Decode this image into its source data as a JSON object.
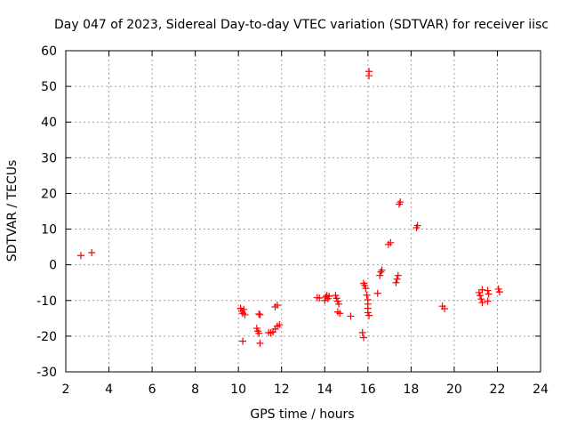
{
  "chart_data": {
    "type": "scatter",
    "title": "Day 047 of 2023, Sidereal Day-to-day VTEC variation (SDTVAR) for receiver iisc",
    "xlabel": "GPS time / hours",
    "ylabel": "SDTVAR / TECUs",
    "xlim": [
      2,
      24
    ],
    "ylim": [
      -30,
      60
    ],
    "xticks": [
      "2",
      "4",
      "6",
      "8",
      "10",
      "12",
      "14",
      "16",
      "18",
      "20",
      "22",
      "24"
    ],
    "yticks": [
      "-30",
      "-20",
      "-10",
      "0",
      "10",
      "20",
      "30",
      "40",
      "50",
      "60"
    ],
    "grid": true,
    "marker": "+",
    "color": "#ff0000",
    "series": [
      {
        "name": "iisc",
        "points": [
          [
            2.7,
            2.6
          ],
          [
            3.2,
            3.4
          ],
          [
            10.1,
            -12.2
          ],
          [
            10.15,
            -13.0
          ],
          [
            10.2,
            -13.6
          ],
          [
            10.25,
            -12.5
          ],
          [
            10.3,
            -14.0
          ],
          [
            10.2,
            -21.4
          ],
          [
            10.85,
            -17.8
          ],
          [
            10.9,
            -18.6
          ],
          [
            10.95,
            -19.2
          ],
          [
            11.0,
            -14.0
          ],
          [
            10.95,
            -13.8
          ],
          [
            11.0,
            -22.0
          ],
          [
            11.4,
            -19.0
          ],
          [
            11.5,
            -19.1
          ],
          [
            11.6,
            -18.8
          ],
          [
            11.7,
            -18.0
          ],
          [
            11.8,
            -17.2
          ],
          [
            11.9,
            -16.8
          ],
          [
            11.7,
            -11.8
          ],
          [
            11.8,
            -11.3
          ],
          [
            13.65,
            -9.2
          ],
          [
            13.75,
            -9.3
          ],
          [
            14.0,
            -10.0
          ],
          [
            14.05,
            -9.0
          ],
          [
            14.1,
            -8.6
          ],
          [
            14.15,
            -9.5
          ],
          [
            14.2,
            -8.8
          ],
          [
            14.5,
            -8.6
          ],
          [
            14.55,
            -9.4
          ],
          [
            14.6,
            -10.2
          ],
          [
            14.65,
            -11.0
          ],
          [
            14.6,
            -13.2
          ],
          [
            14.7,
            -13.6
          ],
          [
            15.2,
            -14.4
          ],
          [
            15.8,
            -5.2
          ],
          [
            15.85,
            -5.8
          ],
          [
            15.9,
            -6.6
          ],
          [
            15.95,
            -8.5
          ],
          [
            16.0,
            -9.8
          ],
          [
            16.0,
            -11.0
          ],
          [
            16.0,
            -12.2
          ],
          [
            16.0,
            -13.4
          ],
          [
            16.05,
            -14.2
          ],
          [
            15.75,
            -19.0
          ],
          [
            15.8,
            -20.4
          ],
          [
            16.05,
            54.2
          ],
          [
            16.05,
            53.0
          ],
          [
            16.45,
            -8.0
          ],
          [
            16.55,
            -3.0
          ],
          [
            16.6,
            -2.0
          ],
          [
            16.65,
            -1.5
          ],
          [
            16.95,
            5.7
          ],
          [
            17.05,
            6.2
          ],
          [
            17.3,
            -5.0
          ],
          [
            17.35,
            -4.0
          ],
          [
            17.4,
            -3.0
          ],
          [
            17.45,
            17.0
          ],
          [
            17.5,
            17.6
          ],
          [
            18.25,
            10.4
          ],
          [
            18.3,
            11.0
          ],
          [
            19.45,
            -11.6
          ],
          [
            19.55,
            -12.3
          ],
          [
            21.15,
            -7.8
          ],
          [
            21.2,
            -8.6
          ],
          [
            21.25,
            -9.6
          ],
          [
            21.3,
            -10.6
          ],
          [
            21.3,
            -7.0
          ],
          [
            21.55,
            -7.2
          ],
          [
            21.6,
            -8.2
          ],
          [
            21.55,
            -10.2
          ],
          [
            22.05,
            -6.8
          ],
          [
            22.1,
            -7.6
          ]
        ]
      }
    ]
  }
}
